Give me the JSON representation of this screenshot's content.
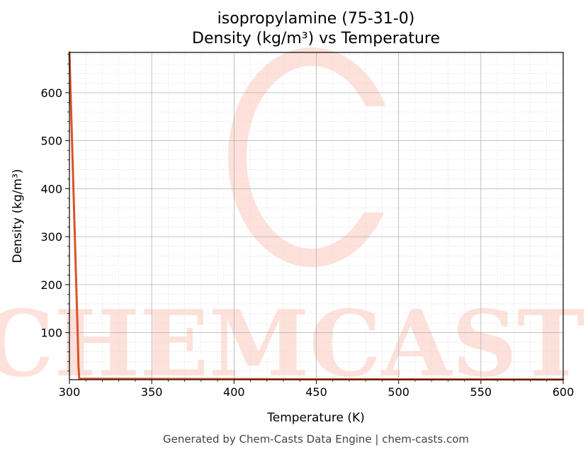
{
  "title_line1": "isopropylamine (75-31-0)",
  "title_line2": "Density (kg/m³) vs Temperature",
  "footer": "Generated by Chem-Casts Data Engine | chem-casts.com",
  "watermark": "CHEMCASTS",
  "colors": {
    "line": "#d9532a",
    "watermark": "#fde1da",
    "grid_major": "#b0b0b0",
    "grid_minor": "#dddddd"
  },
  "chart_data": {
    "type": "line",
    "title": "isopropylamine (75-31-0)\nDensity (kg/m³) vs Temperature",
    "xlabel": "Temperature (K)",
    "ylabel": "Density (kg/m³)",
    "xlim": [
      300,
      600
    ],
    "ylim": [
      2,
      684
    ],
    "xticks": [
      300,
      350,
      400,
      450,
      500,
      550,
      600
    ],
    "yticks": [
      100,
      200,
      300,
      400,
      500,
      600
    ],
    "grid": true,
    "series": [
      {
        "x": [
          300,
          305,
          305.5,
          306,
          320,
          350,
          400,
          450,
          500,
          550,
          600
        ],
        "y": [
          684,
          100,
          30,
          4.0,
          3.8,
          3.6,
          3.3,
          3.0,
          2.7,
          2.5,
          2.3
        ]
      }
    ]
  }
}
